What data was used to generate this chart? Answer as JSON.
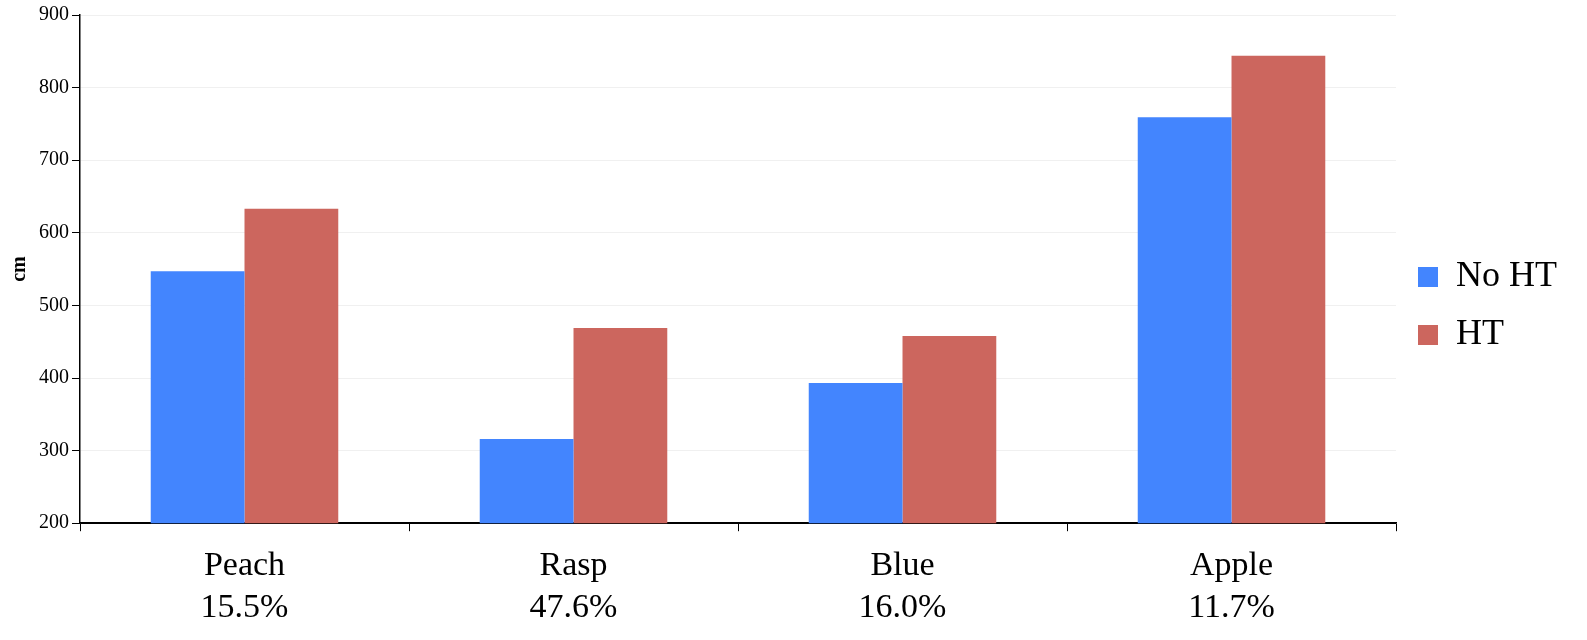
{
  "chart_data": {
    "type": "bar",
    "ylabel": "cm",
    "categories": [
      "Peach",
      "Rasp",
      "Blue",
      "Apple"
    ],
    "series": [
      {
        "name": "No HT",
        "color": "#4385fe",
        "values": [
          547,
          316,
          393,
          759
        ]
      },
      {
        "name": "HT",
        "color": "#cc665e",
        "values": [
          633,
          469,
          458,
          844
        ]
      }
    ],
    "ylim": [
      200,
      900
    ],
    "yticks": [
      200,
      300,
      400,
      500,
      600,
      700,
      800,
      900
    ],
    "annotations": [
      "15.5%",
      "47.6%",
      "16.0%",
      "11.7%"
    ],
    "grid": "y",
    "legend": "right"
  }
}
